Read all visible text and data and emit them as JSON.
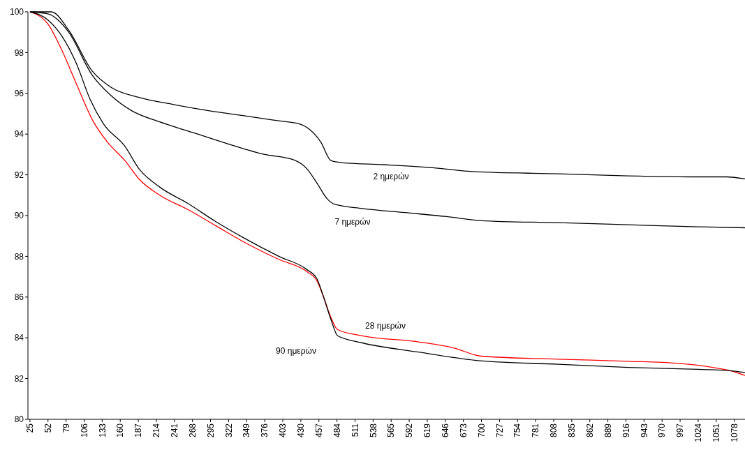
{
  "chart_data": {
    "type": "line",
    "marker": "none",
    "line_style": "solid",
    "grid": false,
    "xlim": [
      22,
      1094
    ],
    "xticks": [
      25,
      52,
      79,
      106,
      133,
      160,
      187,
      214,
      241,
      268,
      295,
      322,
      349,
      376,
      403,
      430,
      457,
      484,
      511,
      538,
      565,
      592,
      619,
      646,
      673,
      700,
      727,
      754,
      781,
      808,
      835,
      862,
      889,
      916,
      943,
      970,
      997,
      1024,
      1051,
      1078
    ],
    "ylim": [
      80,
      100
    ],
    "yticks": [
      80,
      82,
      84,
      86,
      88,
      90,
      92,
      94,
      96,
      98,
      100
    ],
    "series": [
      {
        "name": "2 ημερών",
        "color": "#000000",
        "x": [
          25,
          57,
          83,
          118,
          146,
          188,
          240,
          292,
          345,
          397,
          428,
          444,
          460,
          475,
          491,
          553,
          627,
          690,
          815,
          919,
          1024,
          1066,
          1094
        ],
        "values": [
          100,
          100,
          99.1,
          97.1,
          96.3,
          95.8,
          95.45,
          95.15,
          94.9,
          94.65,
          94.5,
          94.2,
          93.6,
          92.7,
          92.6,
          92.5,
          92.35,
          92.15,
          92.05,
          91.95,
          91.9,
          91.9,
          91.8
        ]
      },
      {
        "name": "7 ημερών",
        "color": "#000000",
        "x": [
          25,
          52,
          83,
          118,
          146,
          177,
          219,
          271,
          323,
          376,
          418,
          439,
          454,
          470,
          481,
          522,
          585,
          648,
          700,
          815,
          919,
          1024,
          1094
        ],
        "values": [
          100,
          99.9,
          99.0,
          96.9,
          95.9,
          95.15,
          94.6,
          94.05,
          93.5,
          93.0,
          92.75,
          92.3,
          91.6,
          90.8,
          90.55,
          90.35,
          90.15,
          89.95,
          89.75,
          89.65,
          89.55,
          89.45,
          89.4
        ]
      },
      {
        "name": "28 ημερών",
        "color": "#ff0000",
        "x": [
          25,
          52,
          73,
          94,
          120,
          141,
          167,
          188,
          219,
          261,
          303,
          345,
          397,
          439,
          454,
          464,
          475,
          485,
          522,
          606,
          659,
          700,
          815,
          919,
          992,
          1045,
          1076,
          1094
        ],
        "values": [
          100,
          99.4,
          98.1,
          96.5,
          94.6,
          93.6,
          92.7,
          91.8,
          91.0,
          90.3,
          89.5,
          88.7,
          87.85,
          87.25,
          86.8,
          86.0,
          85.0,
          84.4,
          84.1,
          83.8,
          83.5,
          83.1,
          82.95,
          82.85,
          82.75,
          82.55,
          82.35,
          82.15
        ]
      },
      {
        "name": "90 ημερών",
        "color": "#000000",
        "x": [
          25,
          52,
          73,
          94,
          115,
          135,
          167,
          188,
          219,
          261,
          303,
          345,
          397,
          439,
          454,
          464,
          475,
          485,
          522,
          606,
          690,
          815,
          919,
          1024,
          1066,
          1094
        ],
        "values": [
          100,
          99.6,
          98.8,
          97.5,
          95.7,
          94.5,
          93.4,
          92.3,
          91.4,
          90.6,
          89.7,
          88.9,
          88.0,
          87.35,
          86.9,
          86.0,
          84.9,
          84.1,
          83.75,
          83.3,
          82.9,
          82.7,
          82.55,
          82.45,
          82.4,
          82.3
        ]
      }
    ]
  }
}
